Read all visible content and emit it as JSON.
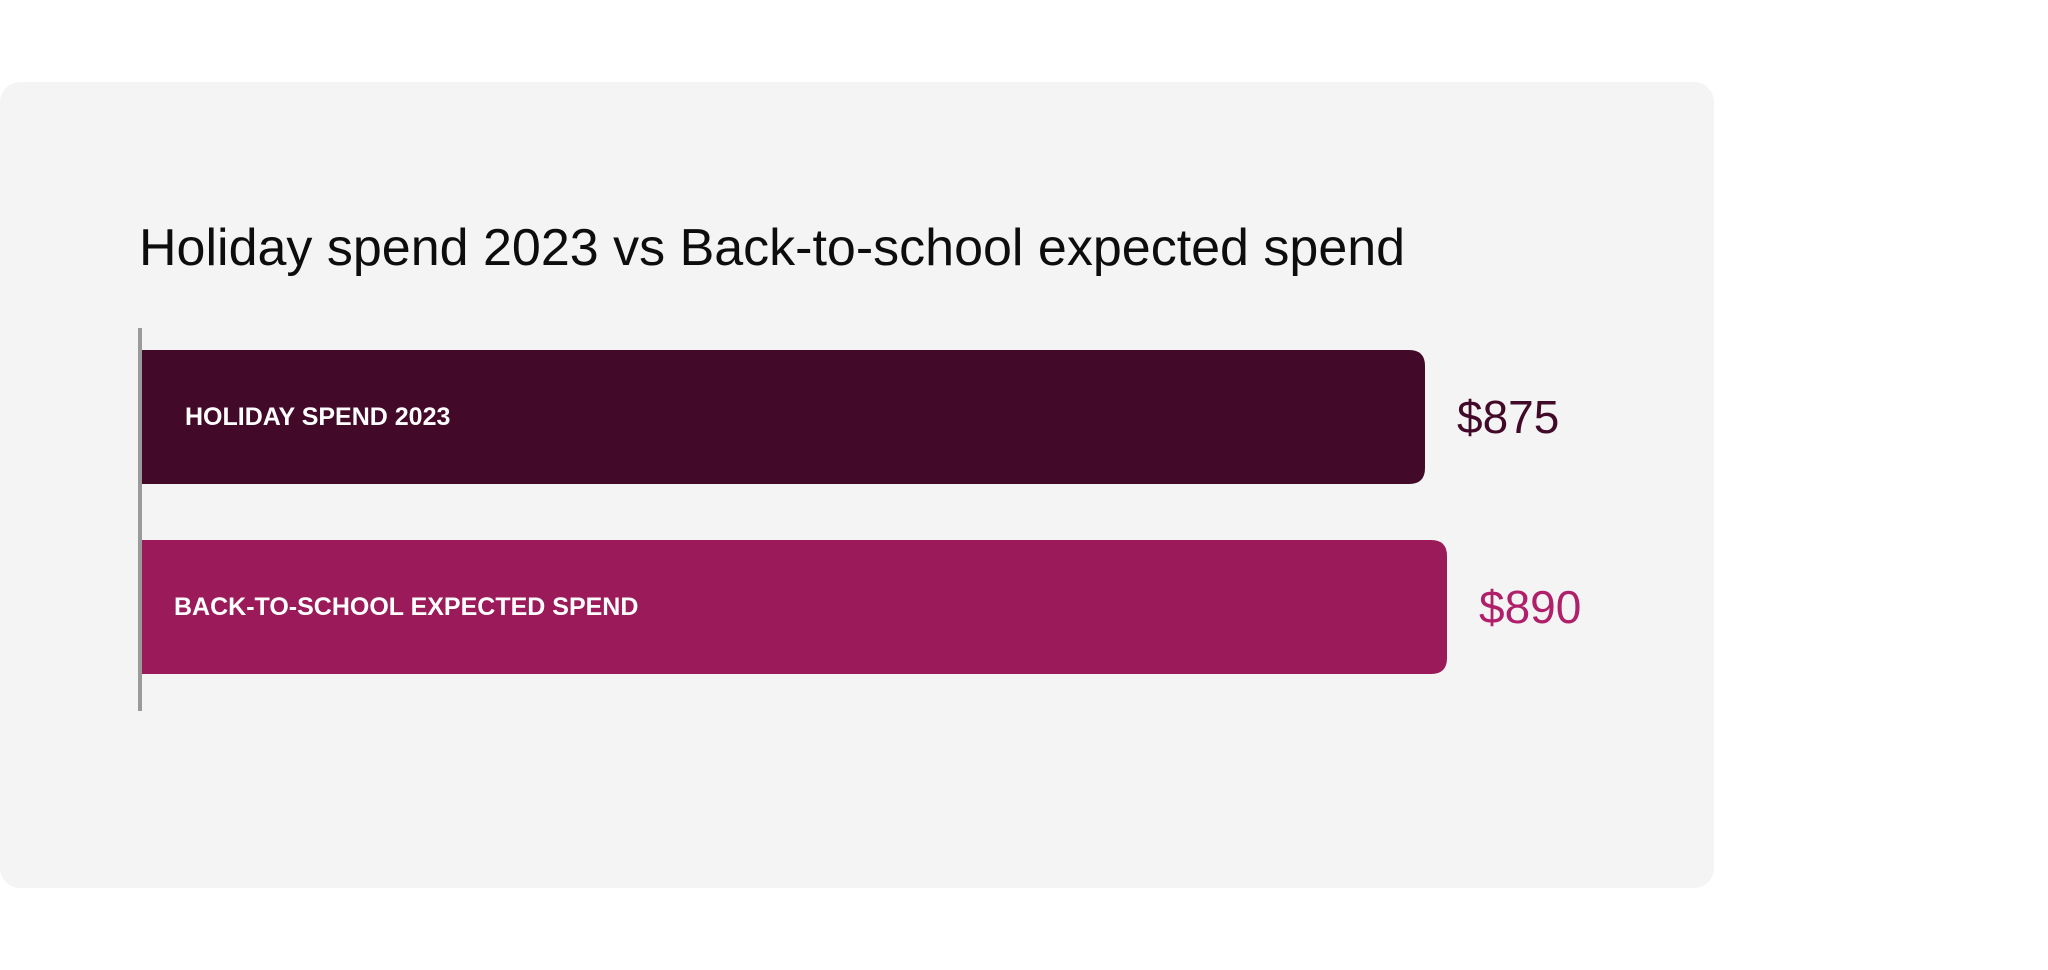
{
  "chart_data": {
    "type": "bar",
    "orientation": "horizontal",
    "title": "Holiday spend 2023 vs Back-to-school expected spend",
    "categories": [
      "HOLIDAY SPEND 2023",
      "BACK-TO-SCHOOL EXPECTED SPEND"
    ],
    "values": [
      875,
      890
    ],
    "value_labels": [
      "$875",
      "$890"
    ],
    "colors": [
      "#420a28",
      "#9b1a5a"
    ],
    "value_label_colors": [
      "#420a28",
      "#b01f6a"
    ],
    "xlabel": "",
    "ylabel": "",
    "xlim": [
      0,
      890
    ],
    "grid": false,
    "legend": "none"
  },
  "styles": {
    "card_background": "#f4f4f4",
    "axis_color": "#9a9a9a",
    "bar_label_color": "#ffffff"
  }
}
